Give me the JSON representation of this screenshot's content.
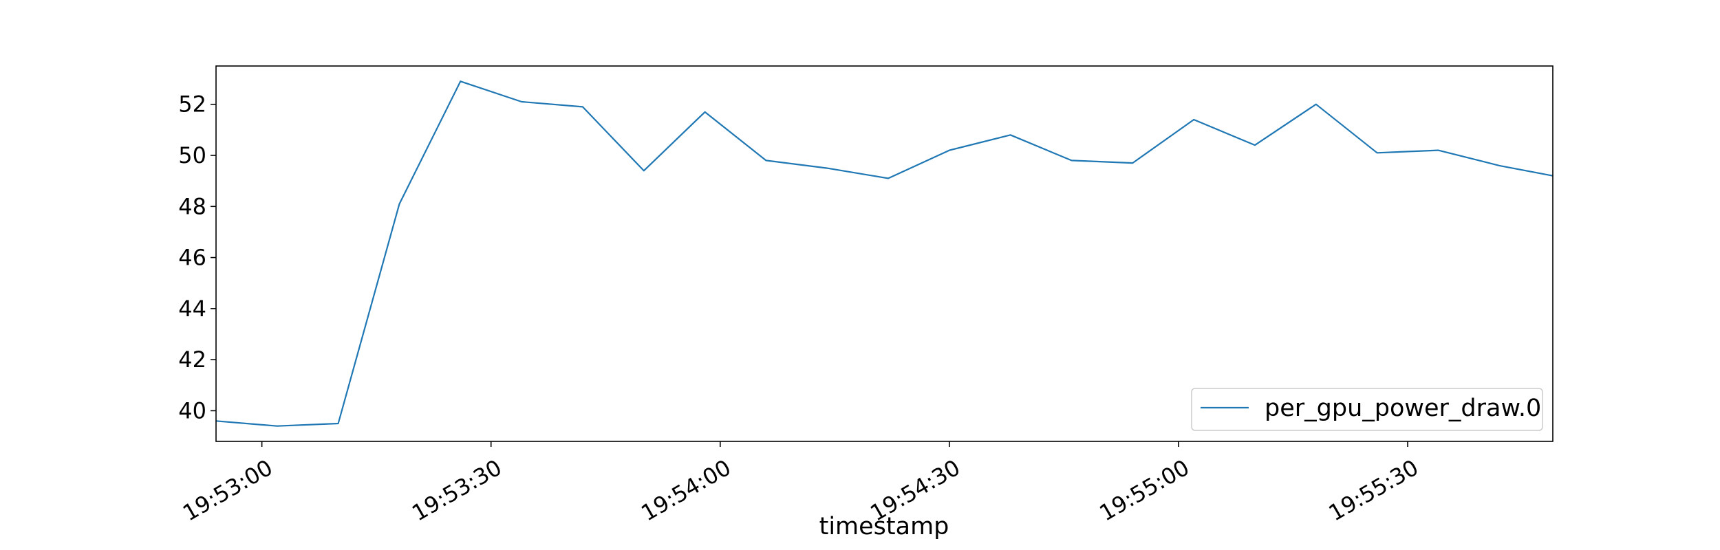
{
  "chart_data": {
    "type": "line",
    "xlabel": "timestamp",
    "ylabel": "",
    "xlim": [
      "19:52:54",
      "19:55:49"
    ],
    "ylim": [
      38.8,
      53.5
    ],
    "x_ticks": [
      "19:53:00",
      "19:53:30",
      "19:54:00",
      "19:54:30",
      "19:55:00",
      "19:55:30"
    ],
    "y_ticks": [
      40,
      42,
      44,
      46,
      48,
      50,
      52
    ],
    "grid": false,
    "legend_position": "lower-right",
    "series": [
      {
        "name": "per_gpu_power_draw.0",
        "color": "#1f77b4",
        "x": [
          "19:52:54",
          "19:53:02",
          "19:53:10",
          "19:53:18",
          "19:53:26",
          "19:53:34",
          "19:53:42",
          "19:53:50",
          "19:53:58",
          "19:54:06",
          "19:54:14",
          "19:54:22",
          "19:54:30",
          "19:54:38",
          "19:54:46",
          "19:54:54",
          "19:55:02",
          "19:55:10",
          "19:55:18",
          "19:55:26",
          "19:55:34",
          "19:55:42",
          "19:55:49"
        ],
        "y": [
          39.6,
          39.4,
          39.5,
          48.1,
          52.9,
          52.1,
          51.9,
          49.4,
          51.7,
          49.8,
          49.5,
          49.1,
          50.2,
          50.8,
          49.8,
          49.7,
          51.4,
          50.4,
          52.0,
          50.1,
          50.2,
          49.6,
          49.2
        ]
      }
    ]
  }
}
